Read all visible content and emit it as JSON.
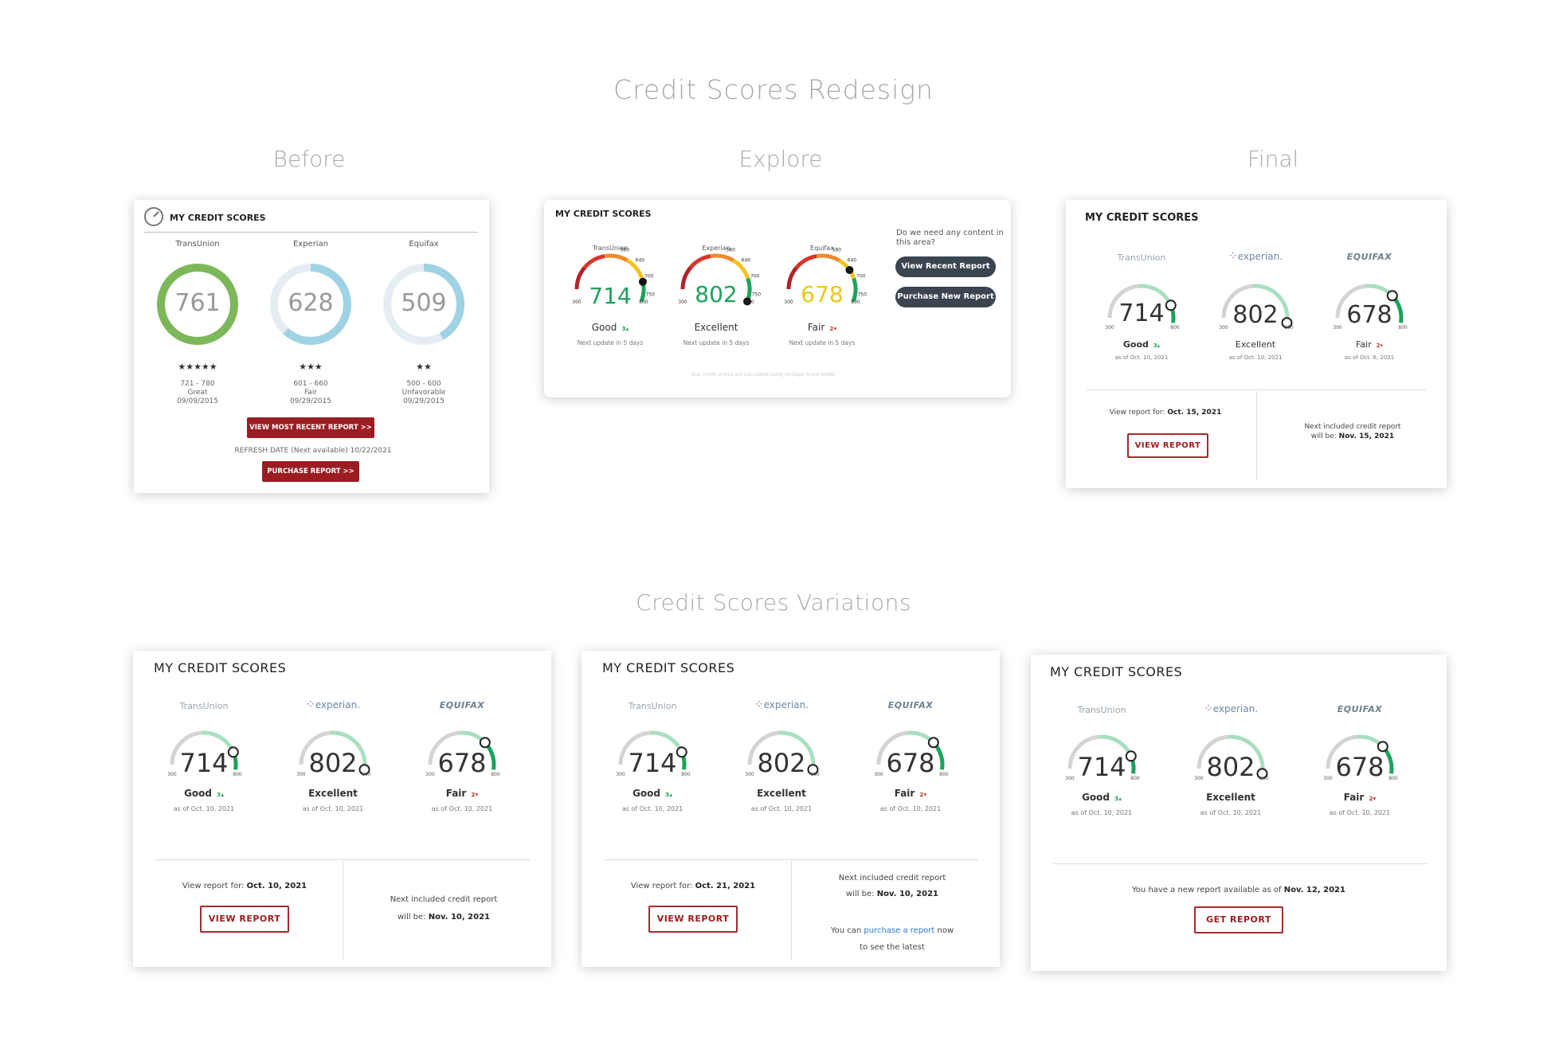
{
  "title": "Credit Scores Redesign",
  "sections": {
    "before": "Before",
    "explore": "Explore",
    "final": "Final",
    "variations": "Credit Scores Variations"
  },
  "before_card": {
    "title": "MY CREDIT SCORES",
    "icon": "gauge-icon",
    "bureaus": [
      {
        "name": "TransUnion",
        "score": "761",
        "stars": "★★★★★",
        "range": "721 - 780",
        "grade": "Great",
        "date": "09/09/2015",
        "ring_fraction": 1.0,
        "color": "#7cb75a"
      },
      {
        "name": "Experian",
        "score": "628",
        "stars": "★★★",
        "range": "601 - 660",
        "grade": "Fair",
        "date": "09/29/2015",
        "ring_fraction": 0.62,
        "color": "#9fd3e3"
      },
      {
        "name": "Equifax",
        "score": "509",
        "stars": "★★",
        "range": "500 - 600",
        "grade": "Unfavorable",
        "date": "09/29/2015",
        "ring_fraction": 0.42,
        "color": "#9fd3e3"
      }
    ],
    "view_button": "VIEW MOST RECENT REPORT >>",
    "refresh": "REFRESH DATE (Next available) 10/22/2021",
    "purchase_button": "PURCHASE REPORT >>"
  },
  "explore_card": {
    "title": "MY CREDIT SCORES",
    "question": "Do we need any content in this area?",
    "view_button": "View Recent Report",
    "purchase_button": "Purchase New Report",
    "footnote": "Your credit scores are calculated using Vantage Score model",
    "tick_labels": [
      "580",
      "640",
      "700",
      "750"
    ],
    "min": "300",
    "max": "800",
    "bureaus": [
      {
        "name": "TransUnion",
        "score": "714",
        "rating": "Good",
        "delta": "3",
        "direction": "up",
        "next": "Next update in 5 days",
        "color": "#1aa35c",
        "fraction": 0.83
      },
      {
        "name": "Experian",
        "score": "802",
        "rating": "Excellent",
        "delta": "",
        "direction": "",
        "next": "Next update in 5 days",
        "color": "#1aa35c",
        "fraction": 1.0
      },
      {
        "name": "Equifax",
        "score": "678",
        "rating": "Fair",
        "delta": "2",
        "direction": "down",
        "next": "Next update in 5 days",
        "color": "#e8c81a",
        "fraction": 0.72
      }
    ]
  },
  "final_card": {
    "title": "MY CREDIT SCORES",
    "bureaus": [
      {
        "logo": "TransUnion",
        "score": "714",
        "rating": "Good",
        "delta": "3",
        "direction": "up",
        "asof": "as of Oct. 10, 2021",
        "fraction": 0.83
      },
      {
        "logo": "experian.",
        "score": "802",
        "rating": "Excellent",
        "delta": "",
        "direction": "",
        "asof": "as of Oct. 10, 2021",
        "fraction": 1.0
      },
      {
        "logo": "EQUIFAX",
        "score": "678",
        "rating": "Fair",
        "delta": "2",
        "direction": "down",
        "asof": "as of Oct. 6, 2021",
        "fraction": 0.72
      }
    ],
    "min": "300",
    "max": "800",
    "view_label": "View report for:",
    "view_date": "Oct. 15, 2021",
    "view_button": "VIEW REPORT",
    "next_label_1": "Next included credit report",
    "next_label_2": "will be:",
    "next_date": "Nov. 15, 2021"
  },
  "variation_cards": [
    {
      "title": "MY CREDIT SCORES",
      "view_label": "View report for:",
      "view_date": "Oct. 10, 2021",
      "button": "VIEW REPORT",
      "next_label_1": "Next included credit report",
      "next_label_2": "will be:",
      "next_date": "Nov. 10, 2021"
    },
    {
      "title": "MY CREDIT SCORES",
      "view_label": "View report for:",
      "view_date": "Oct. 21, 2021",
      "button": "VIEW REPORT",
      "next_label_1": "Next included credit report",
      "next_label_2": "will be:",
      "next_date": "Nov. 10, 2021",
      "purchase_prefix": "You can",
      "purchase_link": "purchase a report",
      "purchase_suffix": "now",
      "purchase_line2": "to see the latest"
    },
    {
      "title": "MY CREDIT SCORES",
      "new_report_text": "You have a new report available as of",
      "new_report_date": "Nov. 12, 2021",
      "button": "GET REPORT"
    }
  ],
  "variation_bureaus": [
    {
      "logo": "TransUnion",
      "score": "714",
      "rating": "Good",
      "delta": "3",
      "direction": "up",
      "asof": "as of Oct. 10, 2021",
      "fraction": 0.83
    },
    {
      "logo": "experian.",
      "score": "802",
      "rating": "Excellent",
      "delta": "",
      "direction": "",
      "asof": "as of Oct. 10, 2021",
      "fraction": 1.0
    },
    {
      "logo": "EQUIFAX",
      "score": "678",
      "rating": "Fair",
      "delta": "2",
      "direction": "down",
      "asof": "as of Oct. 10, 2021",
      "fraction": 0.72
    }
  ],
  "colors": {
    "brand_red": "#9b1d22",
    "good_green": "#1aa35c",
    "arc_gray": "#d4d4d4",
    "arc_light_green": "#a8dfc0",
    "button_dark": "#3a4550",
    "heading_gray": "#a8a8a8"
  }
}
